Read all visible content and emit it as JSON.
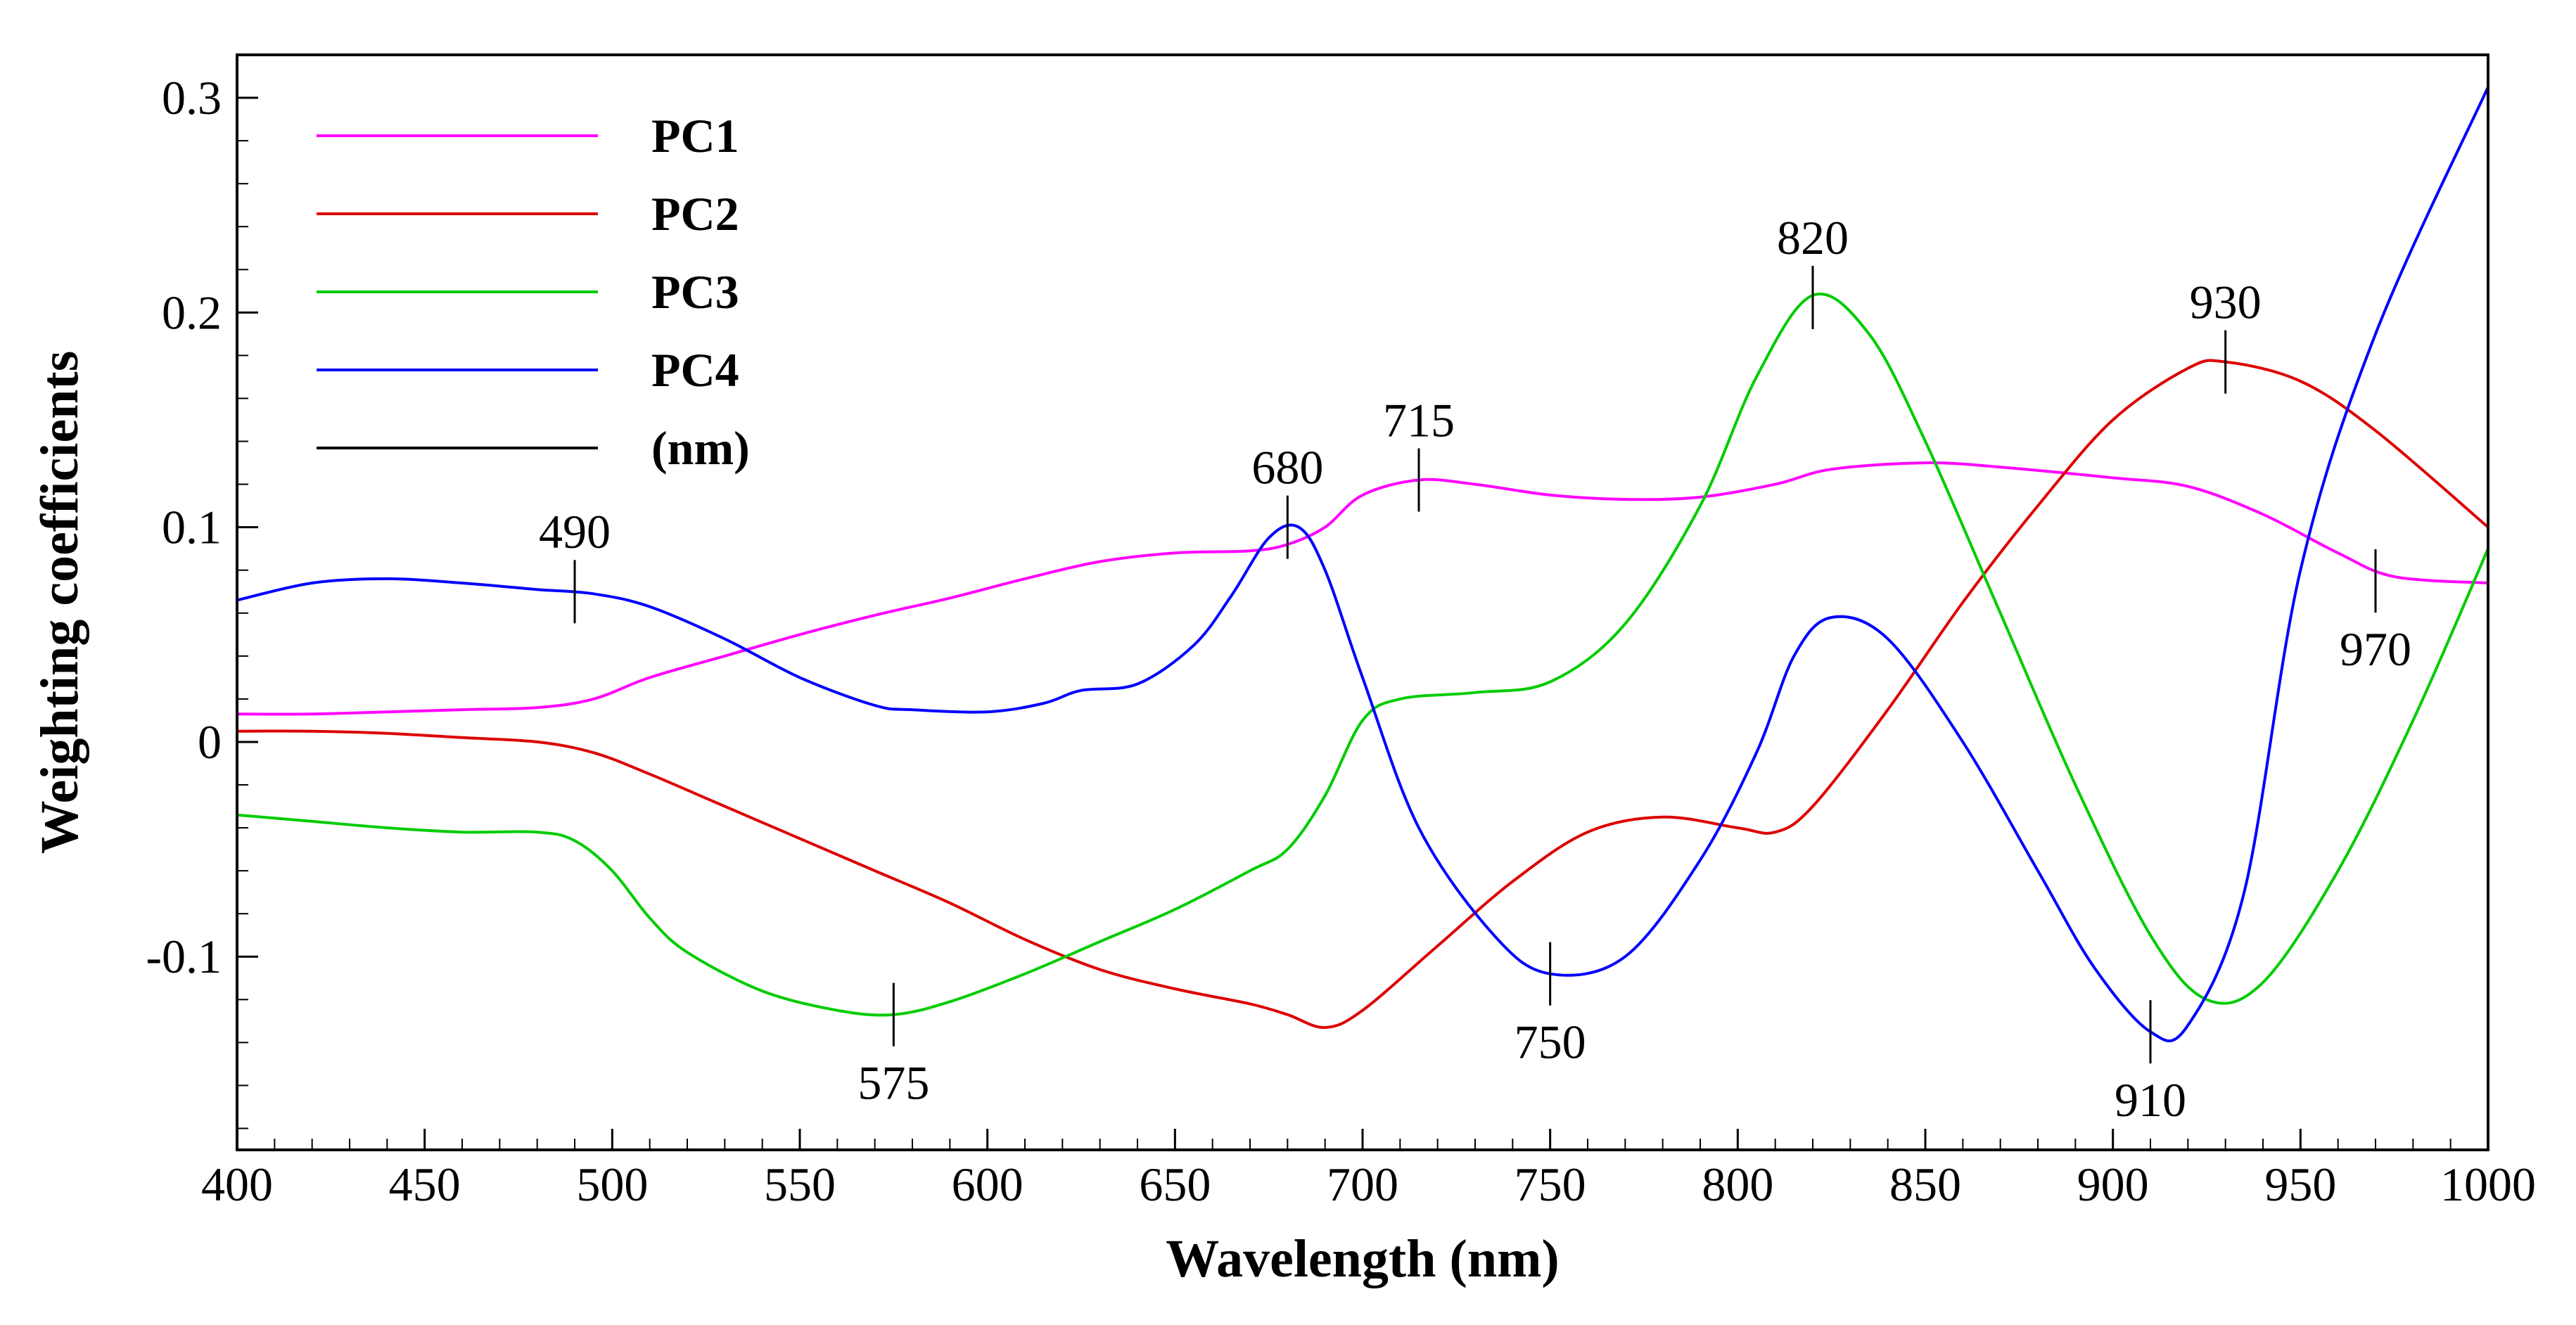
{
  "chart_data": {
    "type": "line",
    "title": "",
    "xlabel": "Wavelength (nm)",
    "ylabel": "Weighting coefficients",
    "xlim": [
      400,
      1000
    ],
    "ylim": [
      -0.19,
      0.32
    ],
    "xticks": [
      400,
      450,
      500,
      550,
      600,
      650,
      700,
      750,
      800,
      850,
      900,
      950,
      1000
    ],
    "yticks": [
      -0.1,
      0,
      0.1,
      0.2,
      0.3
    ],
    "ytick_labels": [
      "-0.1",
      "0",
      "0.1",
      "0.2",
      "0.3"
    ],
    "grid": false,
    "legend_position": "top-left",
    "legend": [
      {
        "label": "PC1",
        "color": "#ff00ff"
      },
      {
        "label": "PC2",
        "color": "#dd0000"
      },
      {
        "label": "PC3",
        "color": "#00cc00"
      },
      {
        "label": "PC4",
        "color": "#0000ff"
      },
      {
        "label": "(nm)",
        "color": "#000000"
      }
    ],
    "series": [
      {
        "name": "PC1",
        "color": "#ff00ff",
        "x": [
          400,
          420,
          440,
          460,
          480,
          495,
          510,
          530,
          550,
          570,
          590,
          610,
          630,
          650,
          670,
          680,
          690,
          700,
          715,
          730,
          750,
          770,
          790,
          810,
          825,
          850,
          870,
          900,
          920,
          940,
          960,
          975,
          1000
        ],
        "y": [
          0.013,
          0.013,
          0.014,
          0.015,
          0.016,
          0.02,
          0.03,
          0.04,
          0.05,
          0.059,
          0.067,
          0.076,
          0.084,
          0.088,
          0.089,
          0.092,
          0.1,
          0.115,
          0.122,
          0.12,
          0.115,
          0.113,
          0.114,
          0.12,
          0.127,
          0.13,
          0.128,
          0.123,
          0.119,
          0.106,
          0.088,
          0.077,
          0.074
        ]
      },
      {
        "name": "PC2",
        "color": "#dd0000",
        "x": [
          400,
          420,
          440,
          460,
          480,
          495,
          510,
          530,
          550,
          570,
          590,
          610,
          630,
          650,
          670,
          680,
          690,
          700,
          720,
          740,
          760,
          780,
          800,
          810,
          820,
          840,
          860,
          880,
          900,
          920,
          930,
          950,
          970,
          1000
        ],
        "y": [
          0.005,
          0.005,
          0.004,
          0.002,
          0.0,
          -0.005,
          -0.015,
          -0.03,
          -0.045,
          -0.06,
          -0.075,
          -0.092,
          -0.106,
          -0.115,
          -0.122,
          -0.127,
          -0.133,
          -0.125,
          -0.095,
          -0.065,
          -0.042,
          -0.035,
          -0.04,
          -0.042,
          -0.03,
          0.015,
          0.065,
          0.11,
          0.15,
          0.174,
          0.177,
          0.168,
          0.145,
          0.1
        ]
      },
      {
        "name": "PC3",
        "color": "#00cc00",
        "x": [
          400,
          420,
          440,
          460,
          480,
          490,
          500,
          510,
          520,
          540,
          560,
          575,
          590,
          610,
          630,
          650,
          670,
          680,
          690,
          700,
          710,
          730,
          750,
          770,
          790,
          805,
          820,
          835,
          850,
          870,
          890,
          910,
          925,
          940,
          960,
          980,
          1000
        ],
        "y": [
          -0.034,
          -0.037,
          -0.04,
          -0.042,
          -0.042,
          -0.046,
          -0.06,
          -0.082,
          -0.098,
          -0.116,
          -0.125,
          -0.127,
          -0.121,
          -0.108,
          -0.093,
          -0.078,
          -0.06,
          -0.05,
          -0.025,
          0.01,
          0.02,
          0.023,
          0.028,
          0.055,
          0.11,
          0.17,
          0.208,
          0.19,
          0.14,
          0.06,
          -0.02,
          -0.09,
          -0.12,
          -0.112,
          -0.06,
          0.01,
          0.09
        ]
      },
      {
        "name": "PC4",
        "color": "#0000ff",
        "x": [
          400,
          420,
          440,
          460,
          480,
          495,
          510,
          530,
          550,
          570,
          580,
          600,
          615,
          625,
          640,
          655,
          665,
          675,
          683,
          690,
          700,
          715,
          735,
          750,
          770,
          790,
          805,
          815,
          825,
          840,
          860,
          880,
          895,
          910,
          920,
          935,
          950,
          970,
          1000
        ],
        "y": [
          0.066,
          0.074,
          0.076,
          0.074,
          0.071,
          0.069,
          0.063,
          0.048,
          0.03,
          0.017,
          0.015,
          0.014,
          0.018,
          0.024,
          0.027,
          0.045,
          0.068,
          0.095,
          0.1,
          0.08,
          0.03,
          -0.04,
          -0.09,
          -0.108,
          -0.1,
          -0.055,
          -0.005,
          0.04,
          0.058,
          0.048,
          0.0,
          -0.06,
          -0.105,
          -0.135,
          -0.132,
          -0.07,
          0.08,
          0.19,
          0.305
        ]
      }
    ],
    "annotations": [
      {
        "label": "490",
        "x": 490,
        "y": 0.07,
        "text_position": "above"
      },
      {
        "label": "575",
        "x": 575,
        "y": -0.127,
        "text_position": "below"
      },
      {
        "label": "680",
        "x": 680,
        "y": 0.1,
        "text_position": "above"
      },
      {
        "label": "715",
        "x": 715,
        "y": 0.122,
        "text_position": "above"
      },
      {
        "label": "750",
        "x": 750,
        "y": -0.108,
        "text_position": "below"
      },
      {
        "label": "820",
        "x": 820,
        "y": 0.207,
        "text_position": "above"
      },
      {
        "label": "910",
        "x": 910,
        "y": -0.135,
        "text_position": "below"
      },
      {
        "label": "930",
        "x": 930,
        "y": 0.177,
        "text_position": "above"
      },
      {
        "label": "970",
        "x": 970,
        "y": 0.075,
        "text_position": "below"
      }
    ]
  }
}
